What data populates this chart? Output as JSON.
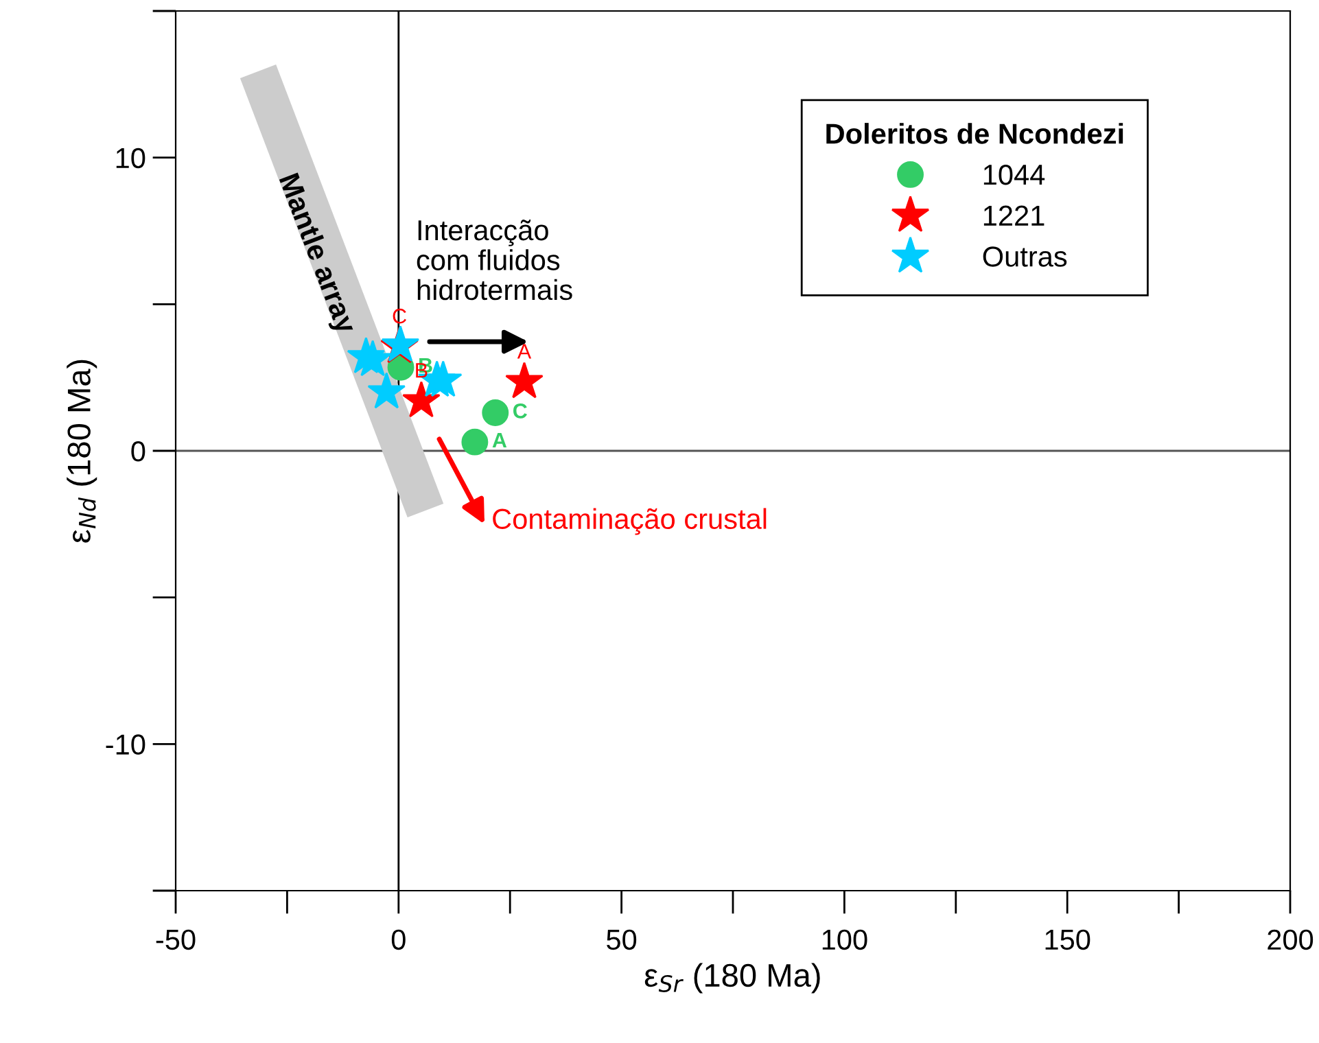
{
  "chart_data": {
    "type": "scatter",
    "xlabel": "ε$_{Sr}$ (180 Ma)",
    "ylabel": "ε$_{Nd}$ (180 Ma)",
    "legend_title": "Doleritos de Ncondezi",
    "xlim": [
      -50,
      200
    ],
    "xticks": [
      -50,
      0,
      50,
      100,
      150,
      200
    ],
    "ylim": [
      -15,
      15
    ],
    "yticks": [
      -10,
      0,
      10
    ],
    "grid": false,
    "legend": "top right",
    "ref_lines": [
      {
        "axis": "x",
        "value": 0,
        "color": "#000000"
      },
      {
        "axis": "y",
        "value": 0,
        "color": "#555555"
      }
    ],
    "series": [
      {
        "name": "1044",
        "color": "#33cc66",
        "marker": "circle",
        "x": [
          0.5,
          21.7,
          17.1
        ],
        "values": [
          2.85,
          1.3,
          0.3
        ],
        "value_labels": [
          "B",
          "C",
          "A"
        ]
      },
      {
        "name": "1221",
        "color": "#ff0000",
        "marker": "star",
        "x": [
          0.2,
          5.1,
          28.2
        ],
        "values": [
          3.55,
          1.7,
          2.35
        ],
        "value_labels": [
          "C",
          "B",
          "A"
        ]
      },
      {
        "name": "Outras",
        "color": "#00ccff",
        "marker": "star",
        "x": [
          -7.3,
          -5.8,
          -2.7,
          0.4,
          8.6,
          10
        ],
        "values": [
          3.2,
          3.1,
          2.0,
          3.6,
          2.4,
          2.4
        ]
      }
    ],
    "annotations": [
      "Mantle array",
      "Interacção\ncom fluidos\nhidrotermais",
      "Contaminação crustal"
    ]
  }
}
